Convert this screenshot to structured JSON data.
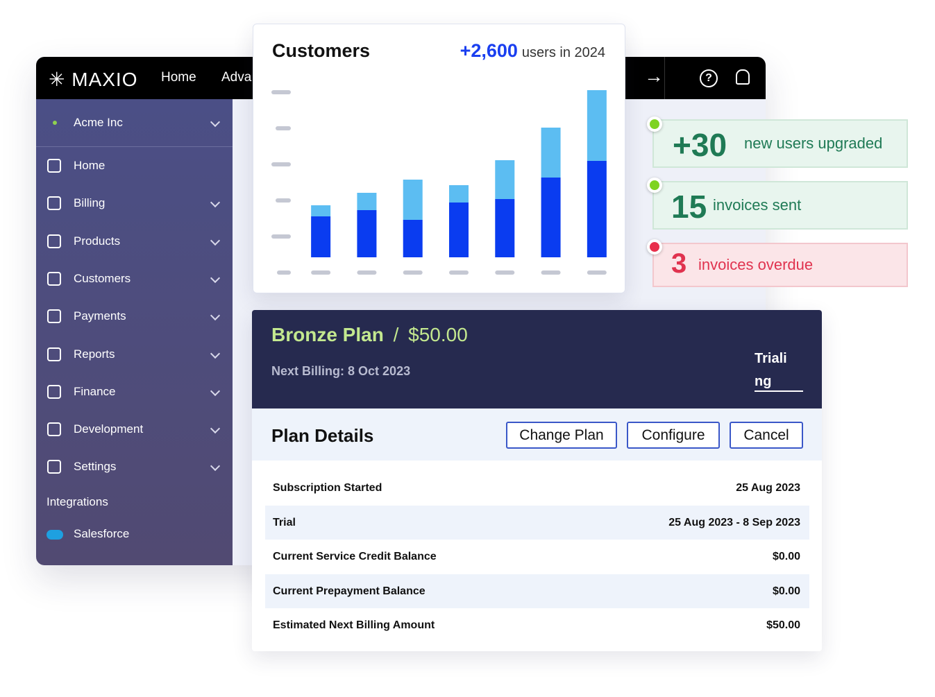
{
  "chart_data": {
    "type": "bar",
    "stacked": true,
    "title": "Customers",
    "annotation": "+2,600",
    "annotation_text": "users in 2024",
    "categories": [
      null,
      null,
      null,
      null,
      null,
      null,
      null
    ],
    "series": [
      {
        "color": "#0a3cf0",
        "values": [
          59,
          68,
          54,
          79,
          84,
          115,
          139
        ]
      },
      {
        "color": "#5cbdf2",
        "values": [
          16,
          25,
          58,
          25,
          56,
          72,
          102
        ]
      }
    ],
    "ylim": [
      0,
      240
    ]
  },
  "topbar": {
    "logo": "MAXIO",
    "nav": [
      "Home",
      "Adva"
    ]
  },
  "sidebar": {
    "account": "Acme Inc",
    "items": [
      "Home",
      "Billing",
      "Products",
      "Customers",
      "Payments",
      "Reports",
      "Finance",
      "Development",
      "Settings"
    ],
    "section": "Integrations",
    "integration": "Salesforce"
  },
  "stats": [
    {
      "number": "+30",
      "text": "new users upgraded"
    },
    {
      "number": "15",
      "text": "invoices sent"
    },
    {
      "number": "3",
      "text": "invoices overdue"
    }
  ],
  "plan": {
    "name": "Bronze Plan",
    "separator": "/",
    "price": "$50.00",
    "next_billing_label": "Next Billing:",
    "next_billing_date": "8 Oct 2023",
    "status": "Trialing",
    "details_title": "Plan Details",
    "buttons": [
      "Change Plan",
      "Configure",
      "Cancel"
    ],
    "rows": [
      [
        "Subscription Started",
        "25 Aug 2023"
      ],
      [
        "Trial",
        "25 Aug 2023 - 8 Sep 2023"
      ],
      [
        "Current Service Credit Balance",
        "$0.00"
      ],
      [
        "Current Prepayment Balance",
        "$0.00"
      ],
      [
        "Estimated Next Billing Amount",
        "$50.00"
      ]
    ]
  }
}
